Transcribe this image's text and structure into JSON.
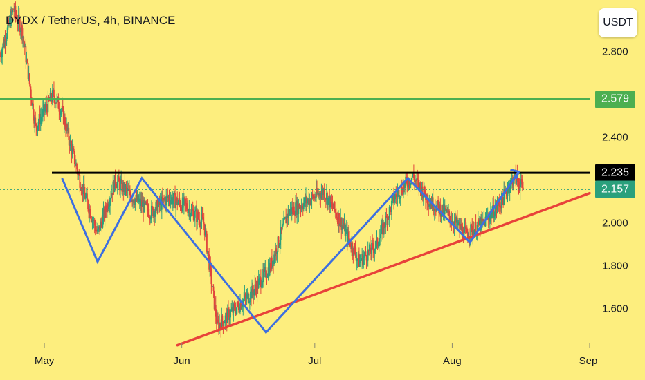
{
  "title": "DYDX / TetherUS, 4h, BINANCE",
  "currency_button": "USDT",
  "colors": {
    "background": "#fdee7e",
    "up_candle": "#2aa07c",
    "down_candle": "#e0443c",
    "pattern_line": "#3d6fe0",
    "support_trendline": "#e8423a",
    "resistance_line": "#000000",
    "target_line": "#4caf50",
    "last_price_line": "#2aa07c"
  },
  "chart_data": {
    "type": "candlestick",
    "symbol": "DYDX / TetherUS",
    "interval": "4h",
    "exchange": "BINANCE",
    "y_axis": {
      "ticks": [
        "2.800",
        "2.400",
        "2.000",
        "1.800",
        "1.600"
      ],
      "tick_values": [
        2.8,
        2.4,
        2.0,
        1.8,
        1.6
      ],
      "range": [
        1.43,
        3.1
      ]
    },
    "x_axis": {
      "ticks": [
        "May",
        "Jun",
        "Jul",
        "Aug",
        "Sep"
      ],
      "range": [
        "2023-04-21",
        "2023-09-01"
      ]
    },
    "price_levels": [
      {
        "name": "target",
        "value": 2.579,
        "label": "2.579",
        "color": "#4caf50"
      },
      {
        "name": "resistance",
        "value": 2.235,
        "label": "2.235",
        "color": "#000000"
      },
      {
        "name": "last_price",
        "value": 2.157,
        "label": "2.157",
        "color": "#2aa07c"
      }
    ],
    "support_trendline": [
      {
        "date": "2023-05-31",
        "price": 1.43
      },
      {
        "date": "2023-09-01",
        "price": 2.14
      }
    ],
    "pattern_path": [
      {
        "date": "2023-05-05",
        "price": 2.21
      },
      {
        "date": "2023-05-13",
        "price": 1.82
      },
      {
        "date": "2023-05-23",
        "price": 2.21
      },
      {
        "date": "2023-06-20",
        "price": 1.49
      },
      {
        "date": "2023-07-22",
        "price": 2.21
      },
      {
        "date": "2023-08-05",
        "price": 1.91
      },
      {
        "date": "2023-08-16",
        "price": 2.24
      }
    ],
    "candle_anchors": [
      {
        "date": "2023-04-21",
        "price": 2.78
      },
      {
        "date": "2023-04-24",
        "price": 3.0
      },
      {
        "date": "2023-04-26",
        "price": 2.9
      },
      {
        "date": "2023-04-29",
        "price": 2.45
      },
      {
        "date": "2023-05-03",
        "price": 2.6
      },
      {
        "date": "2023-05-05",
        "price": 2.52
      },
      {
        "date": "2023-05-09",
        "price": 2.2
      },
      {
        "date": "2023-05-13",
        "price": 1.95
      },
      {
        "date": "2023-05-17",
        "price": 2.2
      },
      {
        "date": "2023-05-21",
        "price": 2.12
      },
      {
        "date": "2023-05-25",
        "price": 2.05
      },
      {
        "date": "2023-05-29",
        "price": 2.12
      },
      {
        "date": "2023-06-02",
        "price": 2.08
      },
      {
        "date": "2023-06-06",
        "price": 2.0
      },
      {
        "date": "2023-06-09",
        "price": 1.52
      },
      {
        "date": "2023-06-13",
        "price": 1.6
      },
      {
        "date": "2023-06-17",
        "price": 1.68
      },
      {
        "date": "2023-06-21",
        "price": 1.8
      },
      {
        "date": "2023-06-25",
        "price": 2.05
      },
      {
        "date": "2023-06-29",
        "price": 2.1
      },
      {
        "date": "2023-07-03",
        "price": 2.15
      },
      {
        "date": "2023-07-07",
        "price": 2.0
      },
      {
        "date": "2023-07-11",
        "price": 1.82
      },
      {
        "date": "2023-07-15",
        "price": 1.9
      },
      {
        "date": "2023-07-19",
        "price": 2.12
      },
      {
        "date": "2023-07-23",
        "price": 2.22
      },
      {
        "date": "2023-07-27",
        "price": 2.1
      },
      {
        "date": "2023-07-31",
        "price": 2.04
      },
      {
        "date": "2023-08-04",
        "price": 1.95
      },
      {
        "date": "2023-08-08",
        "price": 2.0
      },
      {
        "date": "2023-08-12",
        "price": 2.1
      },
      {
        "date": "2023-08-15",
        "price": 2.22
      },
      {
        "date": "2023-08-17",
        "price": 2.157
      }
    ]
  }
}
